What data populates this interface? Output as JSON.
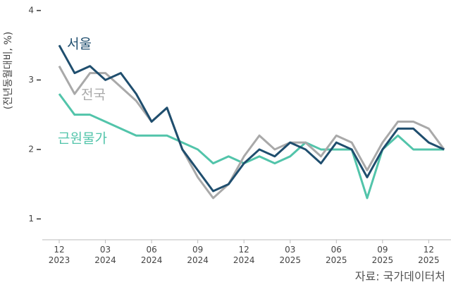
{
  "chart_data": {
    "type": "line",
    "y_label": "(전년동월대비, %)",
    "source": "자료: 국가데이터처",
    "categories": [
      "12 2023",
      null,
      null,
      "03 2024",
      null,
      null,
      "06 2024",
      null,
      null,
      "09 2024",
      null,
      null,
      "12 2024",
      null,
      null,
      "03 2025",
      null,
      null,
      "06 2025",
      null,
      null,
      "09 2025",
      null,
      null,
      "12 2025",
      null
    ],
    "series": [
      {
        "name": "서울",
        "color": "#1f4e6e",
        "values": [
          3.5,
          3.1,
          3.2,
          3.0,
          3.1,
          2.8,
          2.4,
          2.6,
          2.0,
          1.7,
          1.4,
          1.5,
          1.8,
          2.0,
          1.9,
          2.1,
          2.0,
          1.8,
          2.1,
          2.0,
          1.6,
          2.0,
          2.3,
          2.3,
          2.1,
          2.0
        ]
      },
      {
        "name": "전국",
        "color": "#a9a9a9",
        "values": [
          3.2,
          2.8,
          3.1,
          3.1,
          2.9,
          2.7,
          2.4,
          2.6,
          2.0,
          1.6,
          1.3,
          1.5,
          1.9,
          2.2,
          2.0,
          2.1,
          2.1,
          1.9,
          2.2,
          2.1,
          1.7,
          2.1,
          2.4,
          2.4,
          2.3,
          2.0
        ]
      },
      {
        "name": "근원물가",
        "color": "#52c4aa",
        "values": [
          2.8,
          2.5,
          2.5,
          2.4,
          2.3,
          2.2,
          2.2,
          2.2,
          2.1,
          2.0,
          1.8,
          1.9,
          1.8,
          1.9,
          1.8,
          1.9,
          2.1,
          2.0,
          2.0,
          2.0,
          1.3,
          2.0,
          2.2,
          2.0,
          2.0,
          2.0
        ]
      }
    ],
    "ylim": [
      0.7,
      4.05
    ],
    "yticks": [
      1,
      2,
      3,
      4
    ],
    "grid": false
  }
}
